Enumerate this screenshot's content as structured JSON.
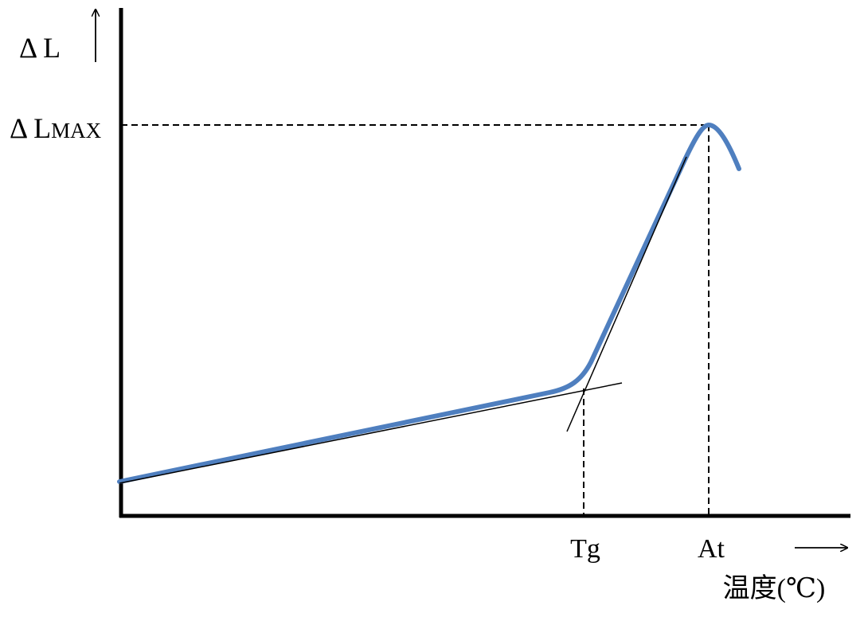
{
  "axis_labels": {
    "y": "Δ L",
    "y_max": {
      "main": "Δ L",
      "subscript": "MAX"
    },
    "x": "温度(℃)"
  },
  "markers": {
    "tg": "Tg",
    "at": "At"
  }
}
